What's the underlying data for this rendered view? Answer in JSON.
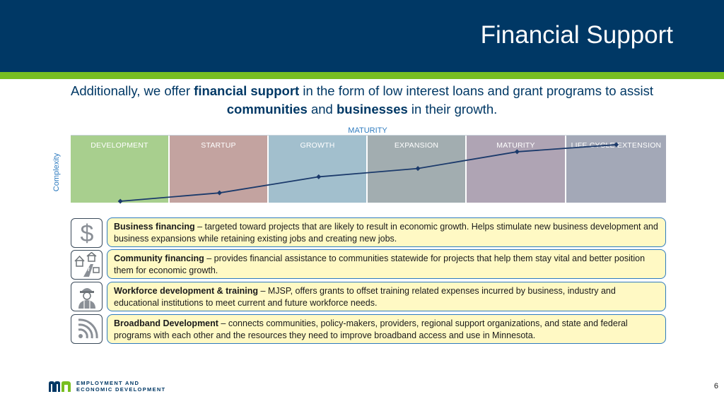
{
  "slide": {
    "title": "Financial Support",
    "page_number": "6"
  },
  "intro": {
    "part1": "Additionally, we offer ",
    "bold1": "financial support",
    "part2": " in the form of low interest loans and grant programs to assist ",
    "bold2": "communities",
    "part3": " and ",
    "bold3": "businesses",
    "part4": " in their growth."
  },
  "chart": {
    "x_axis_label": "MATURITY",
    "y_axis_label": "Complexity",
    "stages": [
      {
        "name": "DEVELOPMENT",
        "color": "#a8cf8e"
      },
      {
        "name": "STARTUP",
        "color": "#c3a3a0"
      },
      {
        "name": "GROWTH",
        "color": "#a2bfcd"
      },
      {
        "name": "EXPANSION",
        "color": "#a2adb0"
      },
      {
        "name": "MATURITY",
        "color": "#afa4b4"
      },
      {
        "name": "LIFE CYCLE EXTENSION",
        "color": "#a3a8b7"
      }
    ],
    "curve_color": "#1b3a6b",
    "curve_level": [
      0.0,
      0.13,
      0.38,
      0.51,
      0.77,
      0.88
    ]
  },
  "programs": [
    {
      "icon": "dollar-icon",
      "name": "Business financing",
      "description": " – targeted toward projects that are likely to result in economic growth. Helps stimulate new business development and business expansions while retaining existing jobs and creating new jobs."
    },
    {
      "icon": "community-icon",
      "name": "Community financing",
      "description": " – provides financial assistance to communities statewide for projects that help them stay vital and better position them for economic growth."
    },
    {
      "icon": "worker-icon",
      "name": "Workforce development & training",
      "description": " – MJSP, offers grants to offset training related expenses incurred by business, industry and educational institutions to meet current and future workforce needs."
    },
    {
      "icon": "broadband-icon",
      "name": "Broadband Development",
      "description": " – connects communities, policy-makers, providers, regional support organizations, and state and federal programs with each other and the resources they need to improve broadband access and use in Minnesota."
    }
  ],
  "footer": {
    "logo_line1": "EMPLOYMENT AND",
    "logo_line2": "ECONOMIC DEVELOPMENT"
  },
  "colors": {
    "header": "#003865",
    "stripe": "#78be21",
    "box_fill": "#fff9c4",
    "box_border": "#2e7bbf"
  }
}
